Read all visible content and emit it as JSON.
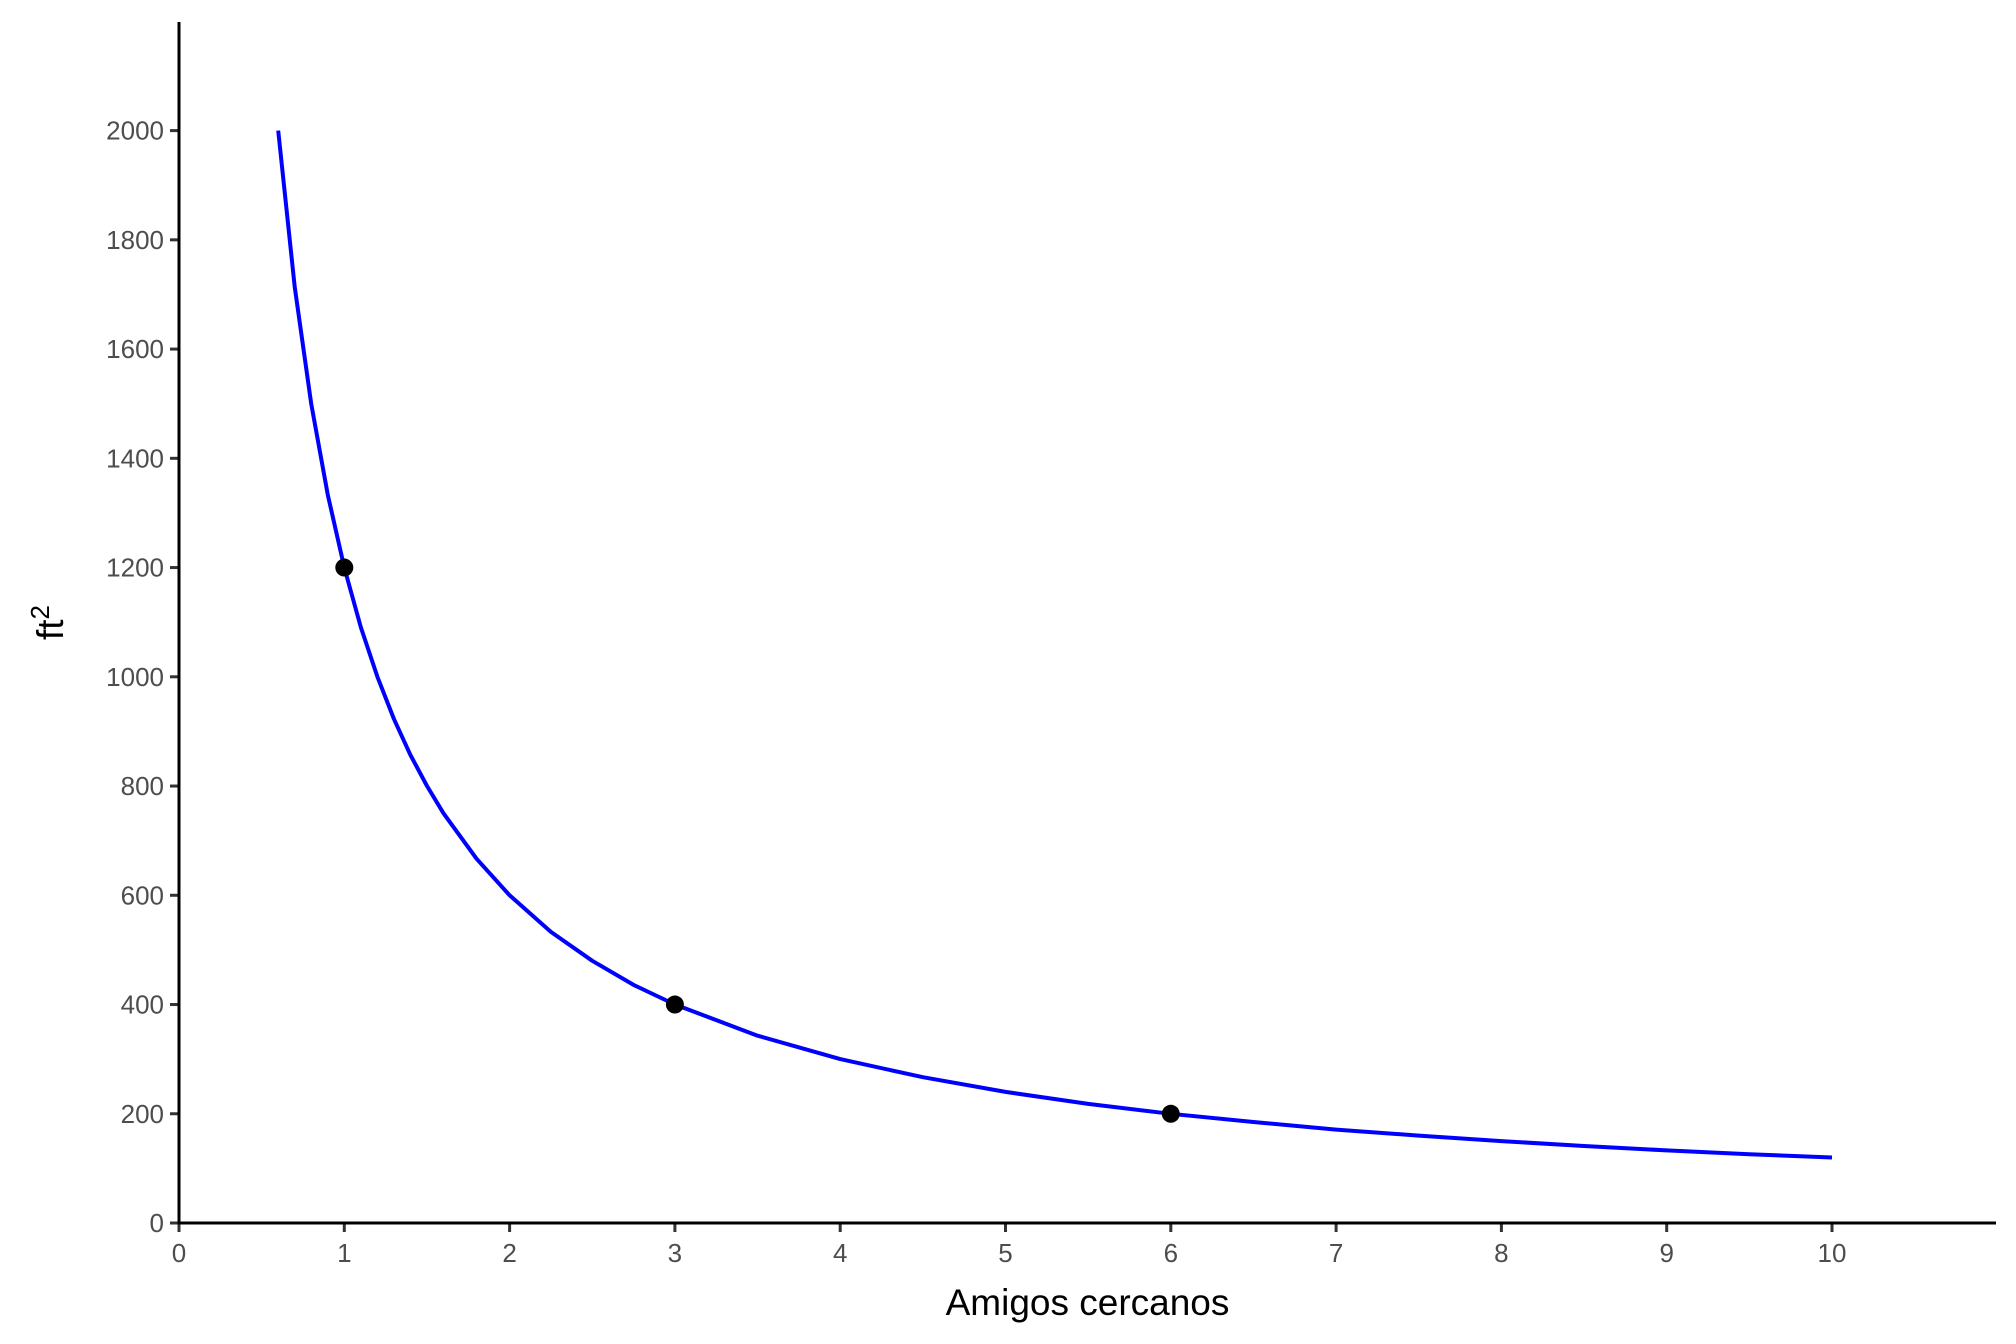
{
  "chart_data": {
    "type": "line",
    "title": "",
    "xlabel": "Amigos cercanos",
    "ylabel": "ft",
    "ylabel_superscript": "2",
    "xlim": [
      0,
      11
    ],
    "ylim": [
      0,
      2200
    ],
    "x_ticks": [
      0,
      1,
      2,
      3,
      4,
      5,
      6,
      7,
      8,
      9,
      10
    ],
    "y_ticks": [
      0,
      200,
      400,
      600,
      800,
      1000,
      1200,
      1400,
      1600,
      1800,
      2000
    ],
    "grid": false,
    "legend": "none",
    "series": [
      {
        "kind": "line",
        "color": "#0000ff",
        "x": [
          0.6,
          0.7,
          0.8,
          0.9,
          1.0,
          1.1,
          1.2,
          1.3,
          1.4,
          1.5,
          1.6,
          1.8,
          2.0,
          2.25,
          2.5,
          2.75,
          3.0,
          3.5,
          4.0,
          4.5,
          5.0,
          5.5,
          6.0,
          6.5,
          7.0,
          7.5,
          8.0,
          8.5,
          9.0,
          9.5,
          10.0
        ],
        "y": [
          2000,
          1714,
          1500,
          1333,
          1200,
          1091,
          1000,
          923,
          857,
          800,
          750,
          667,
          600,
          533,
          480,
          436,
          400,
          343,
          300,
          267,
          240,
          218,
          200,
          185,
          171,
          160,
          150,
          141,
          133,
          126,
          120
        ]
      },
      {
        "kind": "points",
        "color": "#000000",
        "x": [
          1,
          3,
          6
        ],
        "y": [
          1200,
          400,
          200
        ]
      }
    ]
  }
}
